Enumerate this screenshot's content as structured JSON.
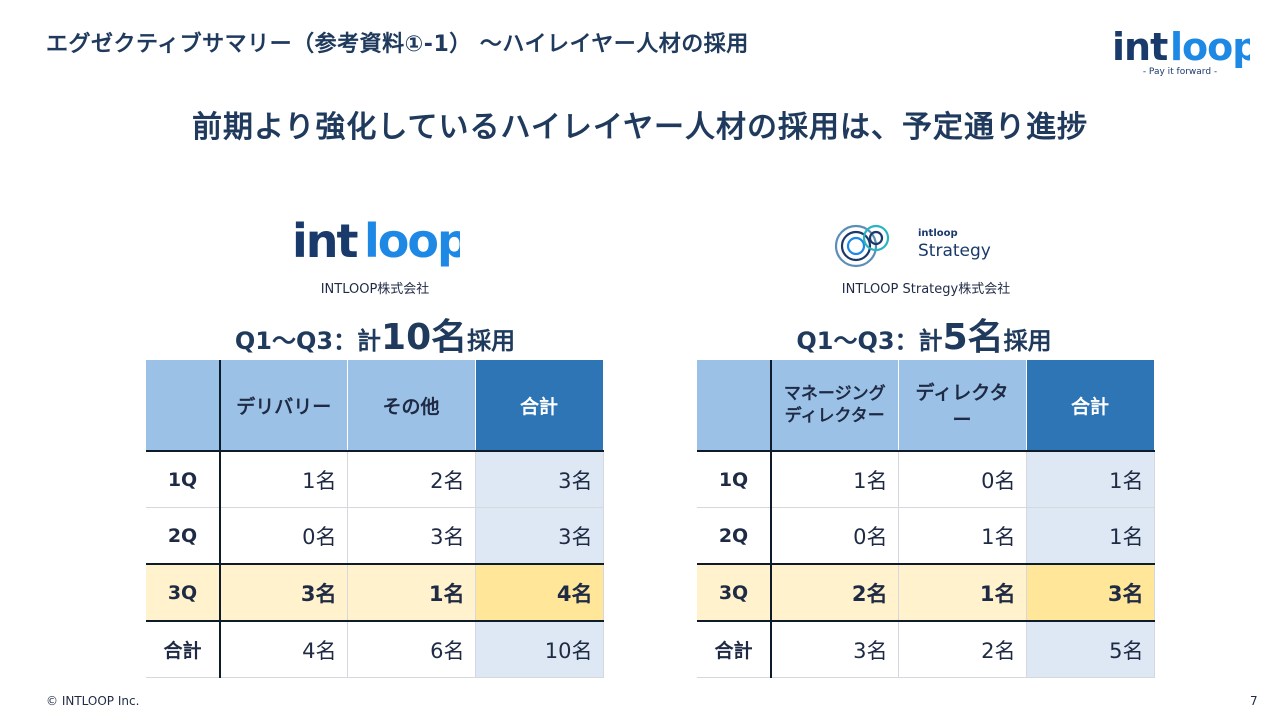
{
  "page": {
    "title": "エグゼクティブサマリー（参考資料①-1） ～ハイレイヤー人材の採用",
    "headline": "前期より強化しているハイレイヤー人材の採用は、予定通り進捗",
    "footer_copyright": "© INTLOOP  Inc.",
    "page_number": "7"
  },
  "brand": {
    "logo_text": "intloop",
    "tagline": "- Pay it forward -",
    "strategy_logo_small": "intloop",
    "strategy_logo_word": "Strategy",
    "colors": {
      "navy": "#1a3a6b",
      "blue": "#1e88e5",
      "header_blue": "#9bc2e6",
      "total_blue": "#2e75b6",
      "highlight_yellow": "#fff2cc"
    }
  },
  "left": {
    "company": "INTLOOP株式会社",
    "summary_prefix": "Q1～Q3：計",
    "summary_number": "10名",
    "summary_suffix": "採用",
    "headers": [
      "",
      "デリバリー",
      "その他",
      "合計"
    ],
    "rows": [
      {
        "label": "1Q",
        "cells": [
          "1名",
          "2名",
          "3名"
        ]
      },
      {
        "label": "2Q",
        "cells": [
          "0名",
          "3名",
          "3名"
        ]
      },
      {
        "label": "3Q",
        "cells": [
          "3名",
          "1名",
          "4名"
        ]
      },
      {
        "label": "合計",
        "cells": [
          "4名",
          "6名",
          "10名"
        ]
      }
    ]
  },
  "right": {
    "company": "INTLOOP Strategy株式会社",
    "summary_prefix": "Q1～Q3：計",
    "summary_number": "5名",
    "summary_suffix": "採用",
    "headers": [
      "",
      "マネージング\nディレクター",
      "ディレクター",
      "合計"
    ],
    "header_line1": "マネージング",
    "header_line2": "ディレクター",
    "rows": [
      {
        "label": "1Q",
        "cells": [
          "1名",
          "0名",
          "1名"
        ]
      },
      {
        "label": "2Q",
        "cells": [
          "0名",
          "1名",
          "1名"
        ]
      },
      {
        "label": "3Q",
        "cells": [
          "2名",
          "1名",
          "3名"
        ]
      },
      {
        "label": "合計",
        "cells": [
          "3名",
          "2名",
          "5名"
        ]
      }
    ]
  }
}
